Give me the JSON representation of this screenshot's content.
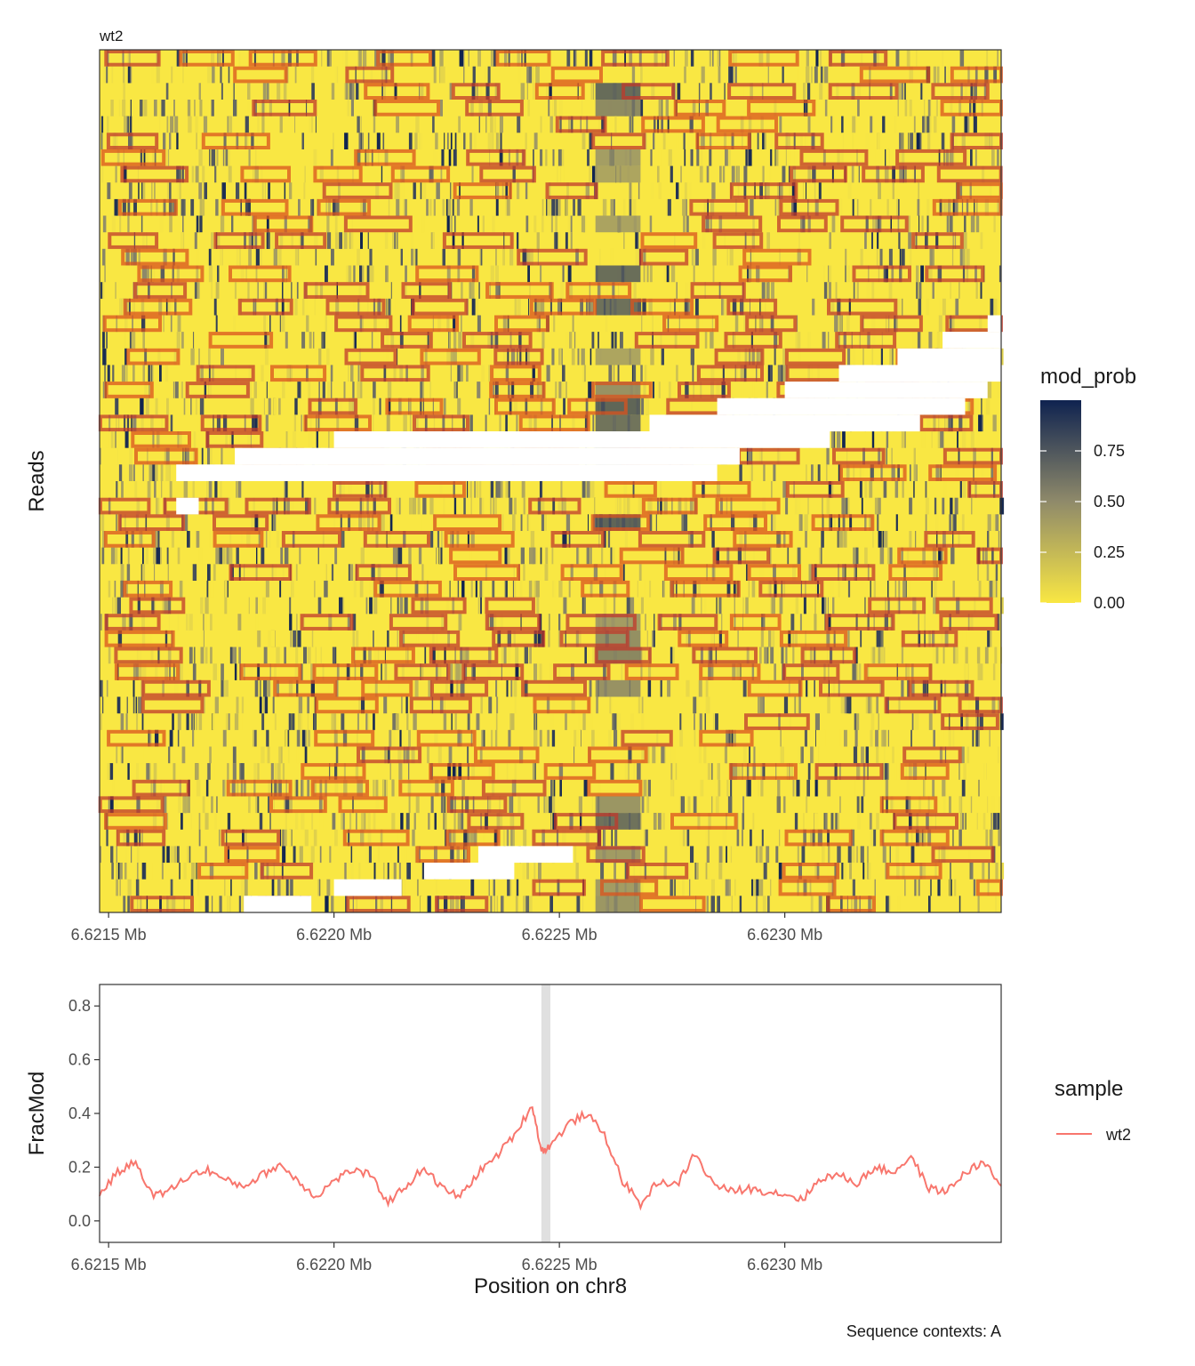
{
  "caption": "Sequence contexts: A",
  "chart_data": [
    {
      "type": "heatmap",
      "panel_title": "wt2",
      "xlabel": "",
      "ylabel": "Reads",
      "x_unit": "Mb",
      "xlim": [
        6.62148,
        6.62348
      ],
      "x_tick_values": [
        6.6215,
        6.622,
        6.6225,
        6.623
      ],
      "x_tick_labels": [
        "6.6215 Mb",
        "6.6220 Mb",
        "6.6225 Mb",
        "6.6230 Mb"
      ],
      "read_count": 52,
      "fill_scale": {
        "name": "mod_prob",
        "low_color": "#f9e743",
        "mid_color": "#8f8a6a",
        "high_color": "#0f2350",
        "limits": [
          0,
          1
        ],
        "ticks": [
          0.0,
          0.25,
          0.5,
          0.75
        ],
        "tick_labels": [
          "0.00",
          "0.25",
          "0.50",
          "0.75"
        ]
      },
      "read_gaps": [
        {
          "read": 16,
          "start": 6.62345,
          "end": 6.62348
        },
        {
          "read": 17,
          "start": 6.62335,
          "end": 6.62348
        },
        {
          "read": 18,
          "start": 6.62325,
          "end": 6.62348
        },
        {
          "read": 19,
          "start": 6.62312,
          "end": 6.62348
        },
        {
          "read": 20,
          "start": 6.623,
          "end": 6.62345
        },
        {
          "read": 21,
          "start": 6.62285,
          "end": 6.6234
        },
        {
          "read": 22,
          "start": 6.6227,
          "end": 6.6233
        },
        {
          "read": 23,
          "start": 6.622,
          "end": 6.6231
        },
        {
          "read": 24,
          "start": 6.62178,
          "end": 6.6229
        },
        {
          "read": 25,
          "start": 6.62165,
          "end": 6.62285
        },
        {
          "read": 27,
          "start": 6.62165,
          "end": 6.6217
        },
        {
          "read": 48,
          "start": 6.62232,
          "end": 6.62253
        },
        {
          "read": 49,
          "start": 6.6222,
          "end": 6.6224
        },
        {
          "read": 50,
          "start": 6.622,
          "end": 6.62215
        },
        {
          "read": 51,
          "start": 6.6218,
          "end": 6.62195
        }
      ],
      "enriched_region": {
        "start": 6.62258,
        "end": 6.62268,
        "peak_mod_prob": 0.8
      },
      "overlay": "nucleosome footprint boxes (orange/red outlines)"
    },
    {
      "type": "line",
      "xlabel": "Position on chr8",
      "ylabel": "FracMod",
      "xlim": [
        6.62148,
        6.62348
      ],
      "ylim": [
        -0.08,
        0.88
      ],
      "x_tick_values": [
        6.6215,
        6.622,
        6.6225,
        6.623
      ],
      "x_tick_labels": [
        "6.6215 Mb",
        "6.6220 Mb",
        "6.6225 Mb",
        "6.6230 Mb"
      ],
      "y_ticks": [
        0.0,
        0.2,
        0.4,
        0.6,
        0.8
      ],
      "y_tick_labels": [
        "0.0",
        "0.2",
        "0.4",
        "0.6",
        "0.8"
      ],
      "highlight_band": {
        "start": 6.62246,
        "end": 6.62248
      },
      "legend_title": "sample",
      "series": [
        {
          "name": "wt2",
          "color": "#f8766d",
          "x": [
            6.62148,
            6.62152,
            6.62156,
            6.6216,
            6.62164,
            6.62168,
            6.62172,
            6.62176,
            6.6218,
            6.62184,
            6.62188,
            6.62192,
            6.62196,
            6.622,
            6.62204,
            6.62208,
            6.62212,
            6.62216,
            6.6222,
            6.62224,
            6.62228,
            6.62232,
            6.62236,
            6.6224,
            6.62244,
            6.62246,
            6.62248,
            6.62252,
            6.62256,
            6.6226,
            6.62264,
            6.62268,
            6.62272,
            6.62276,
            6.6228,
            6.62284,
            6.62288,
            6.62292,
            6.62296,
            6.623,
            6.62304,
            6.62308,
            6.62312,
            6.62316,
            6.6232,
            6.62324,
            6.62328,
            6.62332,
            6.62336,
            6.6234,
            6.62344,
            6.62348
          ],
          "y": [
            0.1,
            0.18,
            0.22,
            0.09,
            0.12,
            0.17,
            0.19,
            0.15,
            0.13,
            0.17,
            0.21,
            0.15,
            0.09,
            0.15,
            0.19,
            0.17,
            0.07,
            0.13,
            0.2,
            0.12,
            0.09,
            0.18,
            0.24,
            0.32,
            0.43,
            0.26,
            0.28,
            0.36,
            0.4,
            0.32,
            0.15,
            0.06,
            0.15,
            0.13,
            0.25,
            0.14,
            0.11,
            0.12,
            0.11,
            0.1,
            0.08,
            0.16,
            0.17,
            0.14,
            0.2,
            0.18,
            0.24,
            0.12,
            0.11,
            0.18,
            0.22,
            0.13
          ]
        }
      ]
    }
  ]
}
